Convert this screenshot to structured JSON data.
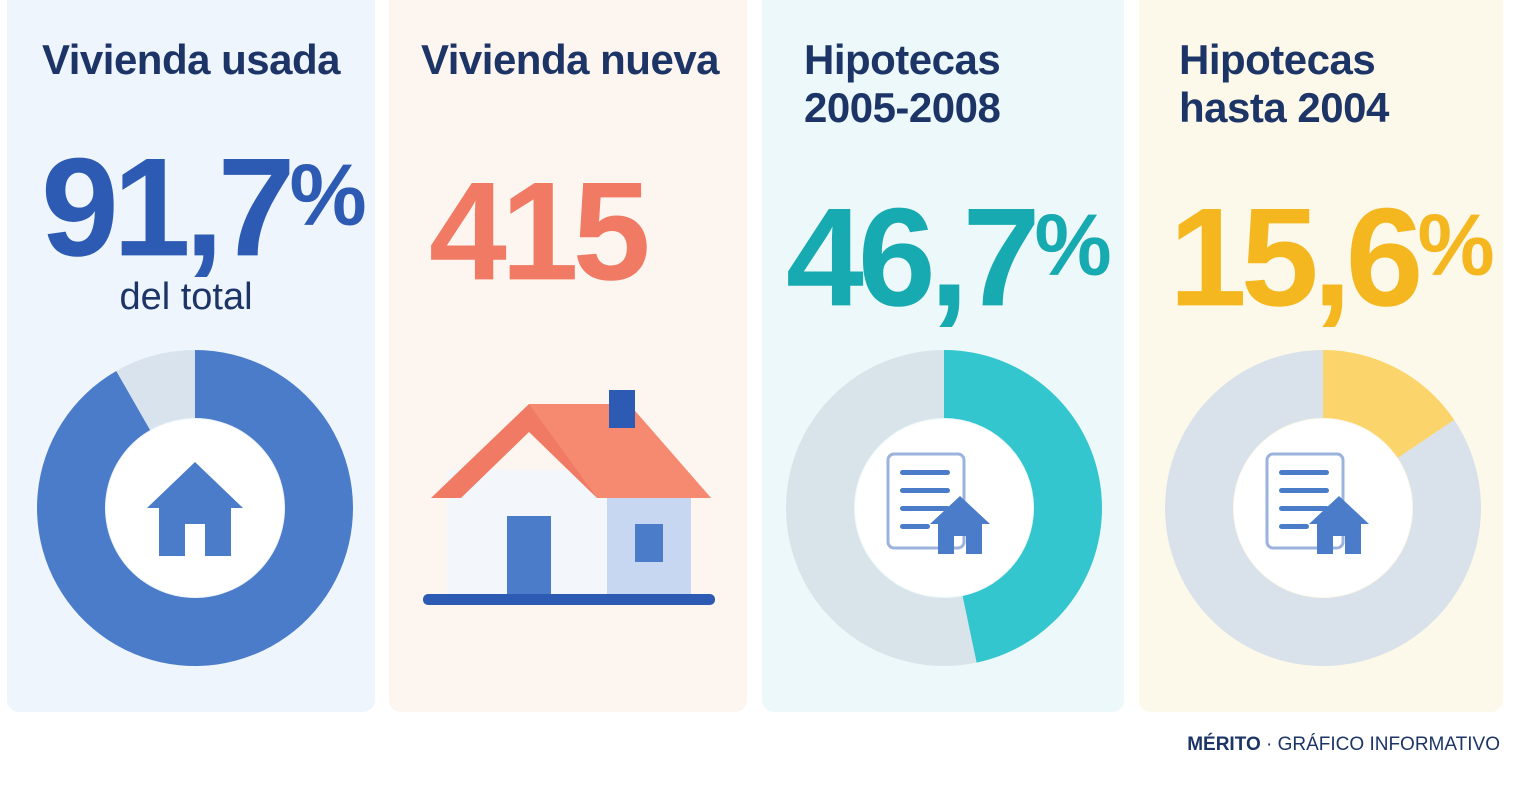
{
  "chart_data": [
    {
      "type": "pie",
      "title": "Vivienda usada",
      "value_label": "91,7",
      "value_suffix": "%",
      "subtitle": "del total",
      "values": [
        91.7,
        8.3
      ],
      "colors": [
        "#4b7cca",
        "#d8e3ee"
      ],
      "icon": "house-icon"
    },
    {
      "type": "table",
      "title": "Vivienda nueva",
      "value_label": "415",
      "value_suffix": "",
      "values": [
        415
      ],
      "colors": [
        "#f07a63"
      ],
      "icon": "house-icon"
    },
    {
      "type": "pie",
      "title": "Hipotecas\n2005-2008",
      "value_label": "46,7",
      "value_suffix": "%",
      "values": [
        46.7,
        53.3
      ],
      "colors": [
        "#33c6cf",
        "#d8e3ea"
      ],
      "icon": "mortgage-document-icon"
    },
    {
      "type": "pie",
      "title": "Hipotecas\nhasta 2004",
      "value_label": "15,6",
      "value_suffix": "%",
      "values": [
        15.6,
        84.4
      ],
      "colors": [
        "#fbd46b",
        "#d9e2ea"
      ],
      "icon": "mortgage-document-icon"
    }
  ],
  "theme": {
    "title_color": "#1c3566",
    "value_colors": [
      "#2d5bb3",
      "#f07a63",
      "#17aab0",
      "#f5b71f"
    ]
  },
  "footer": {
    "brand": "MÉRITO",
    "text": " · GRÁFICO INFORMATIVO"
  }
}
